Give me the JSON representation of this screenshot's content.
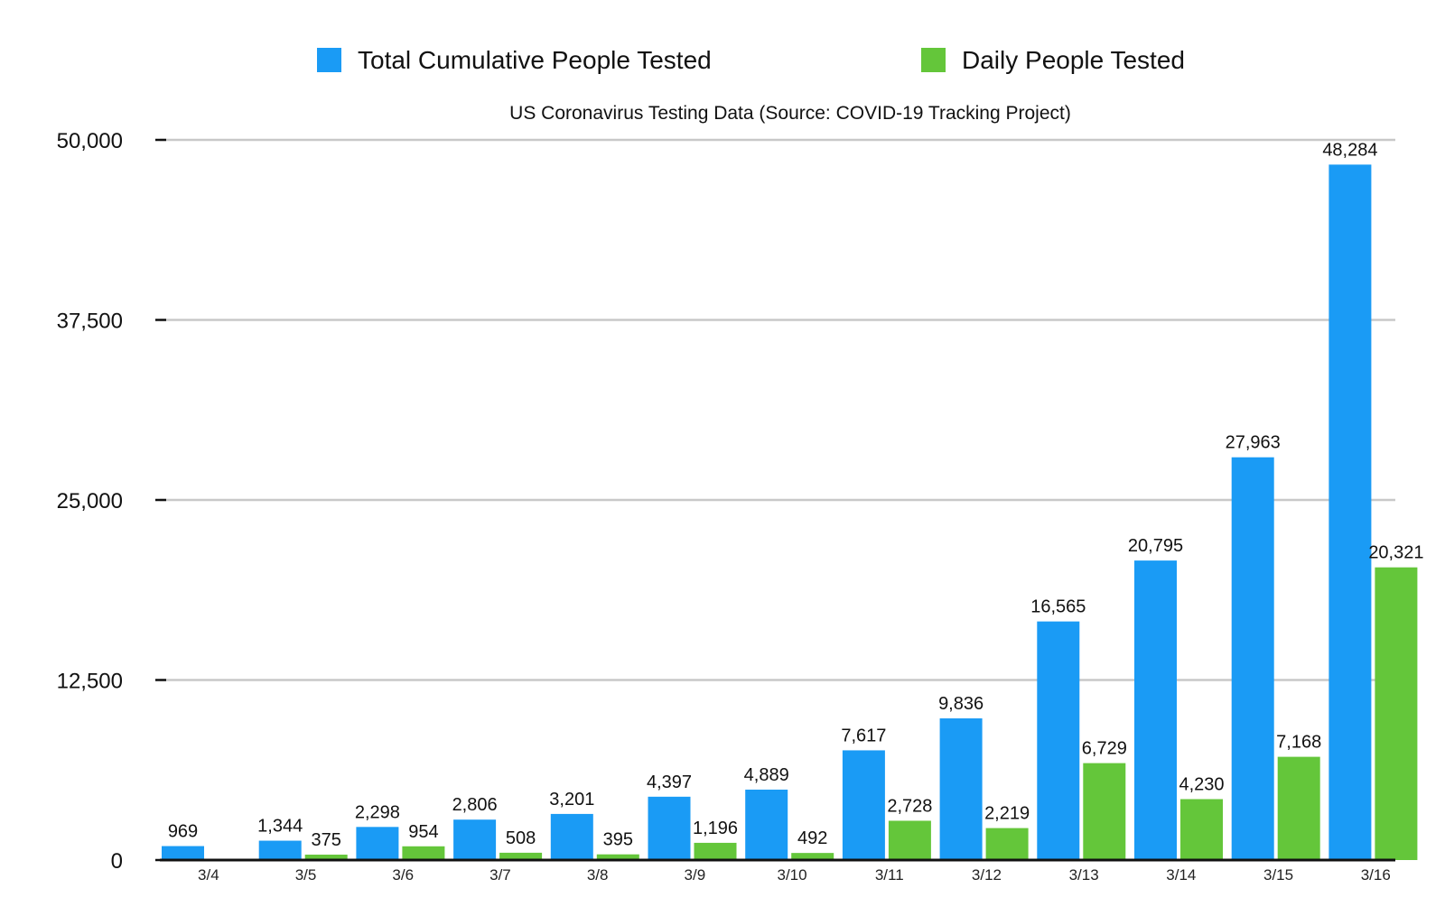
{
  "chart_data": {
    "type": "bar",
    "title": "US Coronavirus Testing Data (Source: COVID-19 Tracking Project)",
    "xlabel": "",
    "ylabel": "",
    "categories": [
      "3/4",
      "3/5",
      "3/6",
      "3/7",
      "3/8",
      "3/9",
      "3/10",
      "3/11",
      "3/12",
      "3/13",
      "3/14",
      "3/15",
      "3/16"
    ],
    "series": [
      {
        "name": "Total Cumulative People Tested",
        "color": "#1a9bf5",
        "values": [
          969,
          1344,
          2298,
          2806,
          3201,
          4397,
          4889,
          7617,
          9836,
          16565,
          20795,
          27963,
          48284
        ],
        "labels": [
          "969",
          "1,344",
          "2,298",
          "2,806",
          "3,201",
          "4,397",
          "4,889",
          "7,617",
          "9,836",
          "16,565",
          "20,795",
          "27,963",
          "48,284"
        ]
      },
      {
        "name": "Daily People Tested",
        "color": "#64c63a",
        "values": [
          null,
          375,
          954,
          508,
          395,
          1196,
          492,
          2728,
          2219,
          6729,
          4230,
          7168,
          20321
        ],
        "labels": [
          null,
          "375",
          "954",
          "508",
          "395",
          "1,196",
          "492",
          "2,728",
          "2,219",
          "6,729",
          "4,230",
          "7,168",
          "20,321"
        ]
      }
    ],
    "ylim": [
      0,
      50000
    ],
    "yticks": [
      0,
      12500,
      25000,
      37500,
      50000
    ],
    "ytick_labels": [
      "0",
      "12,500",
      "25,000",
      "37,500",
      "50,000"
    ],
    "grid": true,
    "legend_position": "top"
  }
}
